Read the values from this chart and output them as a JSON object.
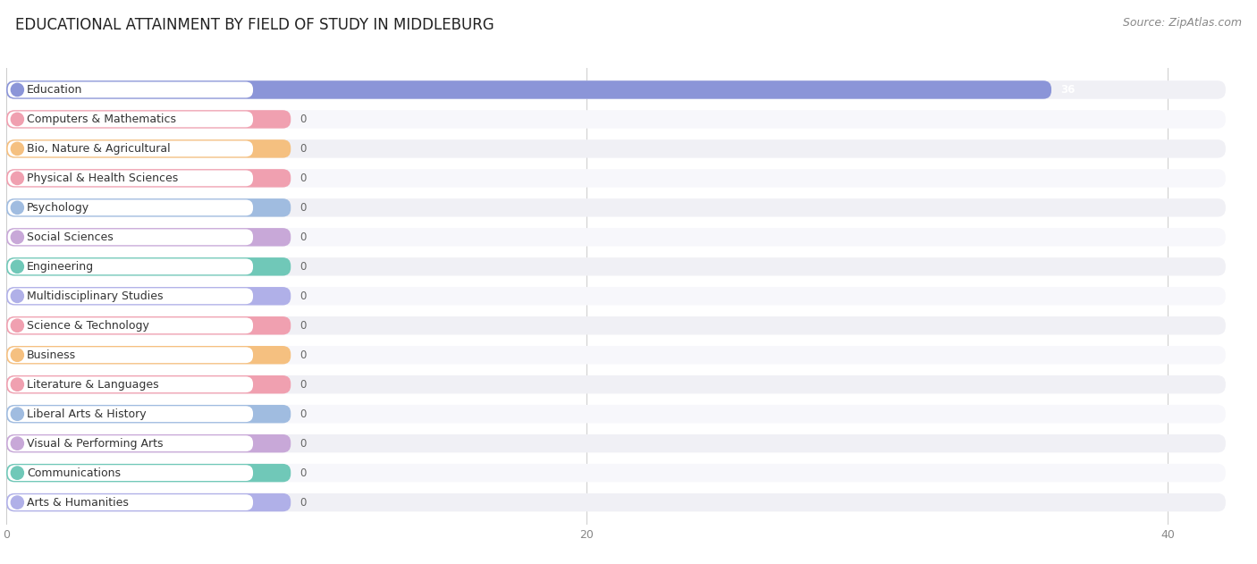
{
  "title": "EDUCATIONAL ATTAINMENT BY FIELD OF STUDY IN MIDDLEBURG",
  "source": "Source: ZipAtlas.com",
  "categories": [
    "Education",
    "Computers & Mathematics",
    "Bio, Nature & Agricultural",
    "Physical & Health Sciences",
    "Psychology",
    "Social Sciences",
    "Engineering",
    "Multidisciplinary Studies",
    "Science & Technology",
    "Business",
    "Literature & Languages",
    "Liberal Arts & History",
    "Visual & Performing Arts",
    "Communications",
    "Arts & Humanities"
  ],
  "values": [
    36,
    0,
    0,
    0,
    0,
    0,
    0,
    0,
    0,
    0,
    0,
    0,
    0,
    0,
    0
  ],
  "bar_colors": [
    "#8b95d8",
    "#f0a0b0",
    "#f5c080",
    "#f0a0b0",
    "#a0bce0",
    "#c8a8d8",
    "#70c8b8",
    "#b0b0e8",
    "#f0a0b0",
    "#f5c080",
    "#f0a0b0",
    "#a0bce0",
    "#c8a8d8",
    "#70c8b8",
    "#b0b0e8"
  ],
  "xlim": [
    0,
    42
  ],
  "xticks": [
    0,
    20,
    40
  ],
  "background_color": "#ffffff",
  "chart_bg_color": "#f7f7f9",
  "title_fontsize": 12,
  "label_fontsize": 9,
  "value_fontsize": 8.5,
  "source_fontsize": 9
}
